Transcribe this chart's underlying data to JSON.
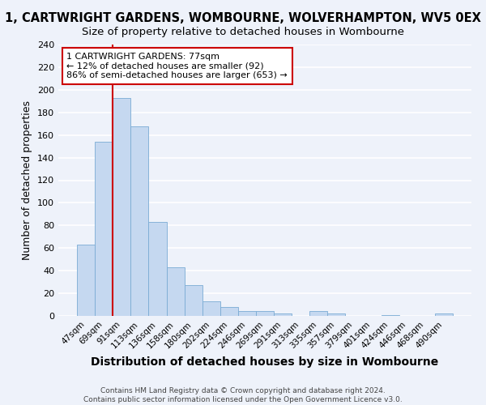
{
  "title1": "1, CARTWRIGHT GARDENS, WOMBOURNE, WOLVERHAMPTON, WV5 0EX",
  "title2": "Size of property relative to detached houses in Wombourne",
  "xlabel": "Distribution of detached houses by size in Wombourne",
  "ylabel": "Number of detached properties",
  "categories": [
    "47sqm",
    "69sqm",
    "91sqm",
    "113sqm",
    "136sqm",
    "158sqm",
    "180sqm",
    "202sqm",
    "224sqm",
    "246sqm",
    "269sqm",
    "291sqm",
    "313sqm",
    "335sqm",
    "357sqm",
    "379sqm",
    "401sqm",
    "424sqm",
    "446sqm",
    "468sqm",
    "490sqm"
  ],
  "values": [
    63,
    154,
    193,
    168,
    83,
    43,
    27,
    13,
    8,
    4,
    4,
    2,
    0,
    4,
    2,
    0,
    0,
    1,
    0,
    0,
    2
  ],
  "bar_color": "#c5d8f0",
  "bar_edge_color": "#7aabd4",
  "vline_color": "#cc0000",
  "annotation_line1": "1 CARTWRIGHT GARDENS: 77sqm",
  "annotation_line2": "← 12% of detached houses are smaller (92)",
  "annotation_line3": "86% of semi-detached houses are larger (653) →",
  "annotation_box_color": "#ffffff",
  "annotation_box_edge": "#cc0000",
  "ylim": [
    0,
    240
  ],
  "yticks": [
    0,
    20,
    40,
    60,
    80,
    100,
    120,
    140,
    160,
    180,
    200,
    220,
    240
  ],
  "background_color": "#eef2fa",
  "grid_color": "#ffffff",
  "footer1": "Contains HM Land Registry data © Crown copyright and database right 2024.",
  "footer2": "Contains public sector information licensed under the Open Government Licence v3.0.",
  "title1_fontsize": 10.5,
  "title2_fontsize": 9.5,
  "ylabel_fontsize": 9,
  "xlabel_fontsize": 10
}
